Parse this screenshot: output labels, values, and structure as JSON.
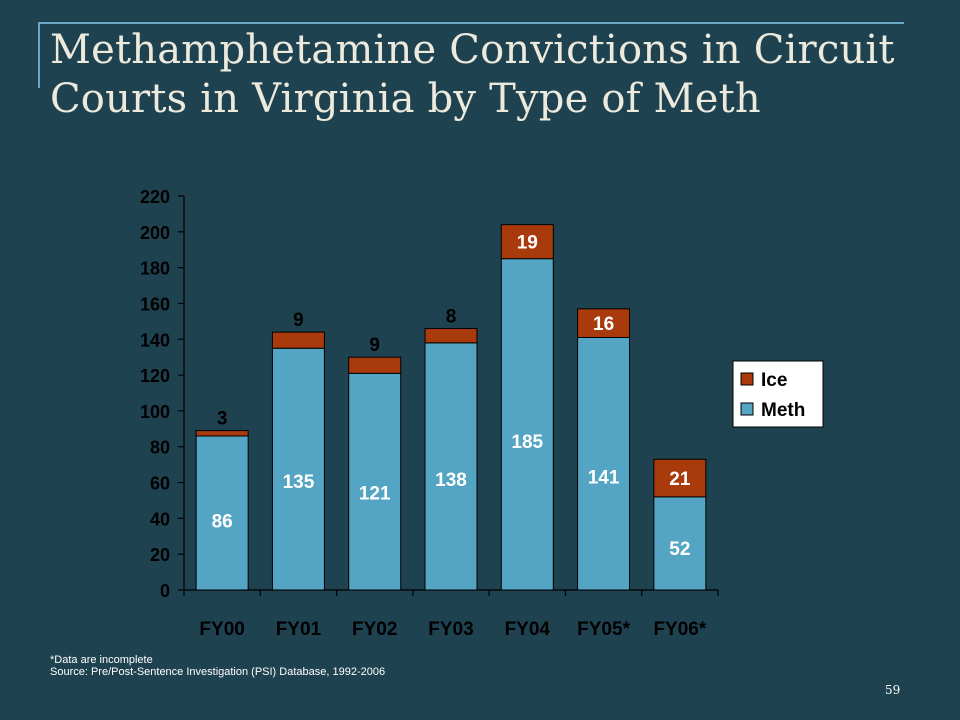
{
  "slide": {
    "title": "Methamphetamine Convictions in Circuit Courts in Virginia by Type of Meth",
    "footnote_line1": "*Data are incomplete",
    "footnote_line2": "Source:  Pre/Post-Sentence Investigation (PSI) Database, 1992-2006",
    "page_number": "59"
  },
  "chart_data": {
    "type": "bar",
    "stacked": true,
    "categories": [
      "FY00",
      "FY01",
      "FY02",
      "FY03",
      "FY04",
      "FY05*",
      "FY06*"
    ],
    "series": [
      {
        "name": "Meth",
        "color": "#54a5c3",
        "values": [
          86,
          135,
          121,
          138,
          185,
          141,
          52
        ]
      },
      {
        "name": "Ice",
        "color": "#a93a0c",
        "values": [
          3,
          9,
          9,
          8,
          19,
          16,
          21
        ]
      }
    ],
    "ylim": [
      0,
      220
    ],
    "yticks": [
      0,
      20,
      40,
      60,
      80,
      100,
      120,
      140,
      160,
      180,
      200,
      220
    ],
    "legend": {
      "position": "right",
      "entries": [
        "Ice",
        "Meth"
      ]
    },
    "grid": false,
    "colors": {
      "axis": "#000000",
      "tick_text": "#000000",
      "label_in_ice": "#ffffff",
      "label_above": "#000000"
    }
  }
}
